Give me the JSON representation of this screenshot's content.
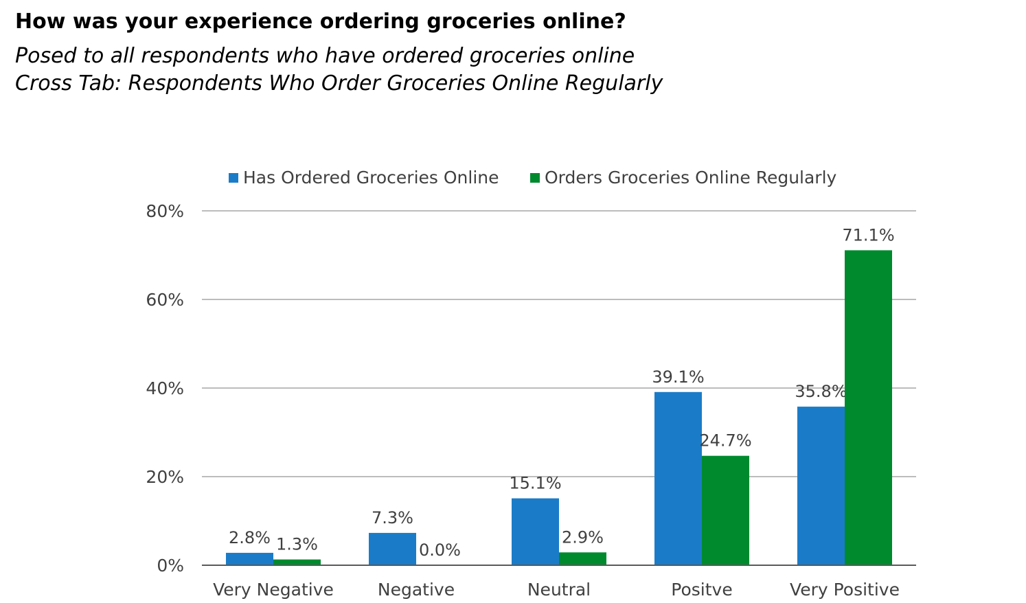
{
  "title": "How was your experience ordering groceries online?",
  "subtitle_lines": [
    "Posed to all respondents who have ordered groceries online",
    "Cross Tab: Respondents Who Order Groceries Online Regularly"
  ],
  "colors": {
    "series_1": "#1a7cc8",
    "series_2": "#008a2e",
    "grid": "#a6a6a6",
    "axis": "#595959"
  },
  "chart_data": {
    "type": "bar",
    "categories": [
      "Very Negative",
      "Negative",
      "Neutral",
      "Positve",
      "Very Positive"
    ],
    "series": [
      {
        "name": "Has Ordered Groceries Online",
        "values": [
          2.8,
          7.3,
          15.1,
          39.1,
          35.8
        ],
        "labels": [
          "2.8%",
          "7.3%",
          "15.1%",
          "39.1%",
          "35.8%"
        ]
      },
      {
        "name": "Orders Groceries Online Regularly",
        "values": [
          1.3,
          0.0,
          2.9,
          24.7,
          71.1
        ],
        "labels": [
          "1.3%",
          "0.0%",
          "2.9%",
          "24.7%",
          "71.1%"
        ]
      }
    ],
    "ylim": [
      0,
      80
    ],
    "yticks": [
      "0%",
      "20%",
      "40%",
      "60%",
      "80%"
    ],
    "ytick_values": [
      0,
      20,
      40,
      60,
      80
    ],
    "grid": true,
    "legend_position": "top"
  }
}
